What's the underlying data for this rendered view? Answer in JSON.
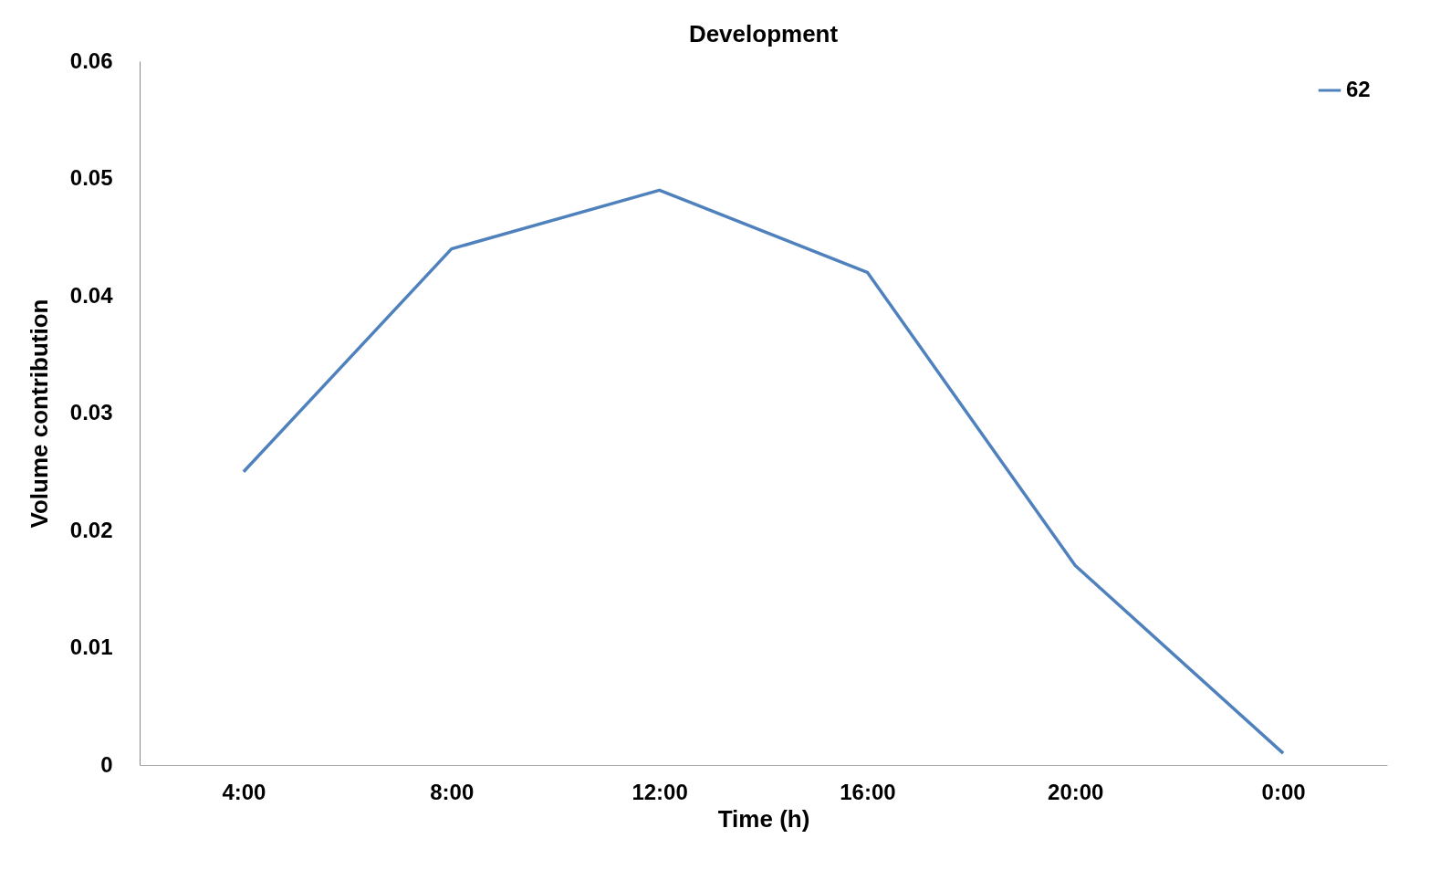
{
  "chart_data": {
    "type": "line",
    "title": "Development",
    "xlabel": "Time (h)",
    "ylabel": "Volume contribution",
    "categories": [
      "4:00",
      "8:00",
      "12:00",
      "16:00",
      "20:00",
      "0:00"
    ],
    "series": [
      {
        "name": "62",
        "color": "#4f81bd",
        "values": [
          0.025,
          0.044,
          0.049,
          0.042,
          0.017,
          0.001
        ]
      }
    ],
    "ylim": [
      0,
      0.06
    ],
    "yticks": [
      0,
      0.01,
      0.02,
      0.03,
      0.04,
      0.05,
      0.06
    ],
    "grid": false,
    "legend": "top right",
    "marker": "none",
    "line_style": "solid"
  }
}
